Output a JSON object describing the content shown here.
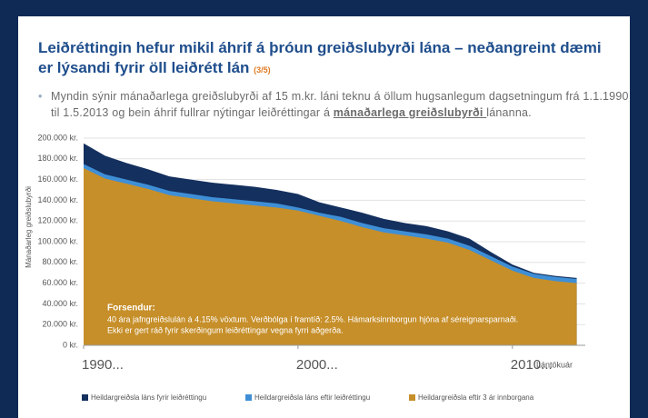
{
  "slide": {
    "title": "Leiðréttingin hefur mikil áhrif á þróun greiðslubyrði lána – neðangreint dæmi er lýsandi fyrir öll leiðrétt lán",
    "page": "(3/5)",
    "bullet": {
      "before": "Myndin sýnir mánaðarlega greiðslubyrði af 15 m.kr. láni teknu á öllum hugsanlegum dagsetningum frá 1.1.1990 til 1.5.2013 og bein áhrif fullrar nýtingar leiðréttingar á ",
      "emphasis": "mánaðarlega greiðslubyrði ",
      "after": "lánanna."
    }
  },
  "chart_data": {
    "type": "area",
    "y_label": "Mánaðarleg greiðslubyrði",
    "x_label": "Lántökuár",
    "x": [
      1990,
      1991,
      1992,
      1993,
      1994,
      1995,
      1996,
      1997,
      1998,
      1999,
      2000,
      2001,
      2002,
      2003,
      2004,
      2005,
      2006,
      2007,
      2008,
      2009,
      2010,
      2011,
      2012,
      2013
    ],
    "series": [
      {
        "name": "Heildargreiðsla láns fyrir leiðréttingu",
        "color": "#14305e",
        "values": [
          195000,
          183000,
          176000,
          170000,
          163000,
          160000,
          157000,
          155000,
          153000,
          150000,
          146000,
          138000,
          133000,
          128000,
          122000,
          118000,
          115000,
          110000,
          103000,
          90000,
          78000,
          70000,
          67000,
          65000
        ]
      },
      {
        "name": "Heildargreiðsla láns eftir leiðréttingu",
        "color": "#3f8fd6",
        "values": [
          175000,
          165000,
          160000,
          155000,
          149000,
          146000,
          143000,
          141000,
          139000,
          137000,
          133000,
          128000,
          124000,
          118000,
          113000,
          110000,
          107000,
          103000,
          96000,
          86000,
          76000,
          69000,
          66000,
          64000
        ]
      },
      {
        "name": "Heildargreiðsla eftir 3 ár innborgana",
        "color": "#c68f2a",
        "values": [
          171000,
          161000,
          156000,
          151000,
          145000,
          142000,
          139000,
          137000,
          135000,
          133000,
          130000,
          125000,
          120000,
          114000,
          109000,
          106000,
          103000,
          99000,
          92000,
          82000,
          72000,
          65000,
          62000,
          60000
        ]
      }
    ],
    "xlim": [
      1990,
      2013.4
    ],
    "xticks": [
      {
        "value": 1990,
        "label": "1990..."
      },
      {
        "value": 2000,
        "label": "2000..."
      },
      {
        "value": 2010,
        "label": "2010..."
      }
    ],
    "ylim": [
      0,
      200000
    ],
    "yticks": [
      {
        "value": 0,
        "label": "0 kr."
      },
      {
        "value": 20000,
        "label": "20.000 kr."
      },
      {
        "value": 40000,
        "label": "40.000 kr."
      },
      {
        "value": 60000,
        "label": "60.000 kr."
      },
      {
        "value": 80000,
        "label": "80.000 kr."
      },
      {
        "value": 100000,
        "label": "100.000 kr."
      },
      {
        "value": 120000,
        "label": "120.000 kr."
      },
      {
        "value": 140000,
        "label": "140.000 kr."
      },
      {
        "value": 160000,
        "label": "160.000 kr."
      },
      {
        "value": 180000,
        "label": "180.000 kr."
      },
      {
        "value": 200000,
        "label": "200.000 kr."
      }
    ],
    "grid": true,
    "annotation": {
      "heading": "Forsendur:",
      "lines": [
        "40 ára jafngreiðslulán á 4.15% vöxtum. Verðbólga í framtíð: 2.5%.  Hámarksinnborgun hjóna af séreignarsparnaði.",
        "Ekki er gert ráð fyrir skerðingum leiðréttingar vegna fyrri aðgerða."
      ]
    }
  }
}
